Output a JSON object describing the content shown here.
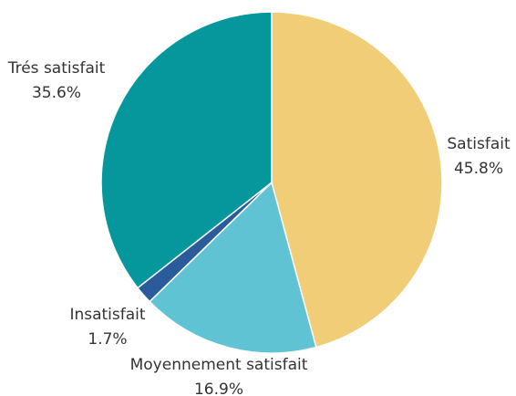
{
  "chart_data": {
    "type": "pie",
    "categories": [
      "Satisfait",
      "Moyennement satisfait",
      "Insatisfait",
      "Trés satisfait"
    ],
    "values": [
      45.8,
      16.9,
      1.7,
      35.6
    ],
    "value_labels": [
      "45.8%",
      "16.9%",
      "1.7%",
      "35.6%"
    ],
    "colors": [
      "#f2cd78",
      "#5fc3d4",
      "#2a5b9a",
      "#05979b"
    ]
  }
}
